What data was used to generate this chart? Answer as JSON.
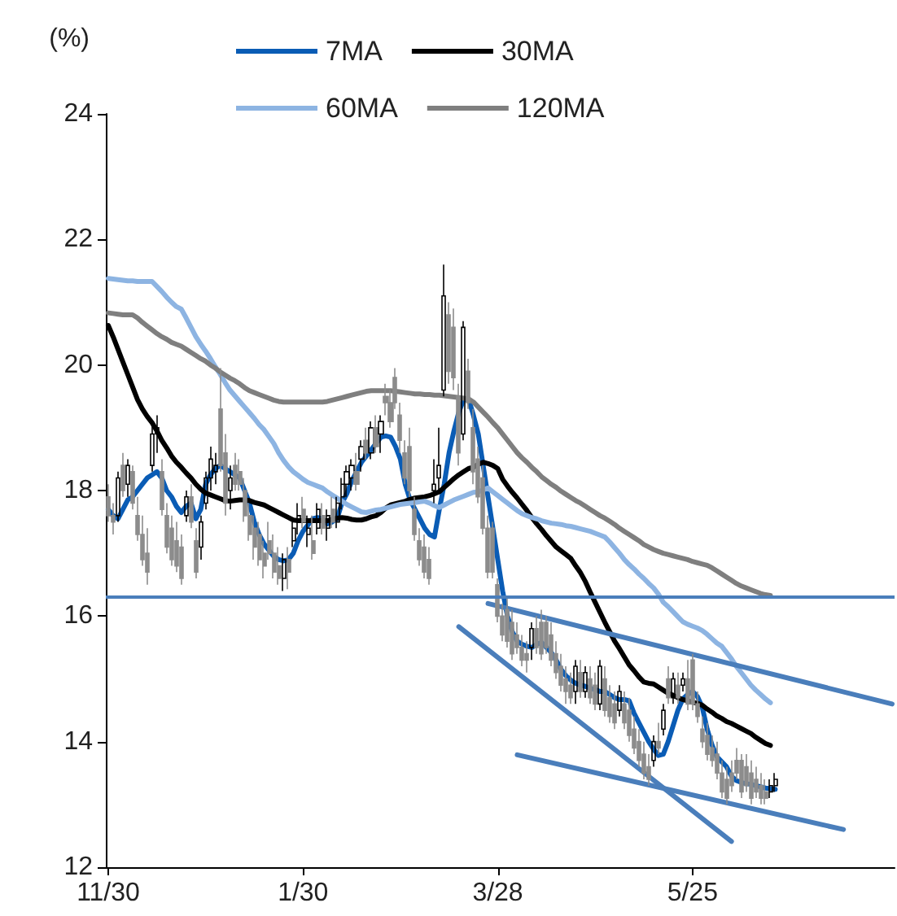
{
  "chart_data": {
    "type": "candlestick",
    "ylabel": "(%)",
    "legend": "top",
    "ylim": [
      12,
      24
    ],
    "yticks": [
      12,
      14,
      16,
      18,
      20,
      22,
      24
    ],
    "categories": [
      "11/30",
      null,
      null,
      null,
      null,
      null,
      null,
      null,
      null,
      null,
      null,
      null,
      null,
      null,
      null,
      null,
      null,
      null,
      null,
      null,
      null,
      null,
      null,
      null,
      null,
      null,
      null,
      null,
      null,
      null,
      null,
      null,
      null,
      null,
      null,
      null,
      null,
      null,
      null,
      null,
      "1/30",
      null,
      null,
      null,
      null,
      null,
      null,
      null,
      null,
      null,
      null,
      null,
      null,
      null,
      null,
      null,
      null,
      null,
      null,
      null,
      null,
      null,
      null,
      null,
      null,
      null,
      null,
      null,
      null,
      null,
      null,
      null,
      null,
      null,
      null,
      null,
      null,
      null,
      null,
      null,
      "3/28",
      null,
      null,
      null,
      null,
      null,
      null,
      null,
      null,
      null,
      null,
      null,
      null,
      null,
      null,
      null,
      null,
      null,
      null,
      null,
      null,
      null,
      null,
      null,
      null,
      null,
      null,
      null,
      null,
      null,
      null,
      null,
      null,
      null,
      null,
      null,
      null,
      null,
      null,
      null,
      "5/25",
      null,
      null,
      null,
      null,
      null,
      null,
      null,
      null,
      null,
      null,
      null,
      null,
      null,
      null,
      null,
      null,
      null,
      null,
      null,
      null,
      null,
      null,
      null,
      null,
      null,
      null,
      null,
      null,
      null,
      null,
      null,
      null,
      null,
      null,
      null,
      null,
      null,
      null,
      null,
      null,
      null
    ],
    "ohlc": [
      [
        17.9,
        18.1,
        17.5,
        17.6
      ],
      [
        17.6,
        17.8,
        17.3,
        17.5
      ],
      [
        17.6,
        18.3,
        17.5,
        18.2
      ],
      [
        18.4,
        18.6,
        17.9,
        18.0
      ],
      [
        18.1,
        18.5,
        17.9,
        18.4
      ],
      [
        18.3,
        18.4,
        17.7,
        17.8
      ],
      [
        17.6,
        17.9,
        17.2,
        17.3
      ],
      [
        17.3,
        17.6,
        16.8,
        16.9
      ],
      [
        17.0,
        17.4,
        16.5,
        16.7
      ],
      [
        18.4,
        19.1,
        18.3,
        18.9
      ],
      [
        18.9,
        19.2,
        18.6,
        19.0
      ],
      [
        18.3,
        18.5,
        17.6,
        17.7
      ],
      [
        17.6,
        17.8,
        17.0,
        17.1
      ],
      [
        17.4,
        17.6,
        16.8,
        16.9
      ],
      [
        17.2,
        17.5,
        16.7,
        16.8
      ],
      [
        17.1,
        17.3,
        16.5,
        16.6
      ],
      [
        17.6,
        18.0,
        17.5,
        17.9
      ],
      [
        17.9,
        18.1,
        17.4,
        17.5
      ],
      [
        17.2,
        17.4,
        16.6,
        16.7
      ],
      [
        17.1,
        17.6,
        16.9,
        17.5
      ],
      [
        17.8,
        18.3,
        17.7,
        18.2
      ],
      [
        18.2,
        18.7,
        18.0,
        18.5
      ],
      [
        18.3,
        18.6,
        18.1,
        18.4
      ],
      [
        19.3,
        19.95,
        18.3,
        18.4
      ],
      [
        18.6,
        18.9,
        17.6,
        17.8
      ],
      [
        18.0,
        18.4,
        17.7,
        18.2
      ],
      [
        18.4,
        18.6,
        18.0,
        18.1
      ],
      [
        18.3,
        18.5,
        18.0,
        18.1
      ],
      [
        18.0,
        18.2,
        17.5,
        17.6
      ],
      [
        17.6,
        17.8,
        17.2,
        17.3
      ],
      [
        17.4,
        17.6,
        16.9,
        17.1
      ],
      [
        17.3,
        17.5,
        16.8,
        16.9
      ],
      [
        17.0,
        17.2,
        16.6,
        16.8
      ],
      [
        17.2,
        17.5,
        16.9,
        17.0
      ],
      [
        17.0,
        17.3,
        16.6,
        16.7
      ],
      [
        16.8,
        17.1,
        16.5,
        16.6
      ],
      [
        16.6,
        17.0,
        16.4,
        16.9
      ],
      [
        16.9,
        17.1,
        16.43,
        16.7
      ],
      [
        17.2,
        17.5,
        17.1,
        17.4
      ],
      [
        17.5,
        17.8,
        17.3,
        17.6
      ],
      [
        17.7,
        17.9,
        17.4,
        17.5
      ],
      [
        17.3,
        17.6,
        17.1,
        17.4
      ],
      [
        17.2,
        17.6,
        16.9,
        17.0
      ],
      [
        17.4,
        17.8,
        17.3,
        17.7
      ],
      [
        17.6,
        17.8,
        17.3,
        17.4
      ],
      [
        17.4,
        17.7,
        17.2,
        17.6
      ],
      [
        17.7,
        17.9,
        17.4,
        17.5
      ],
      [
        17.5,
        17.9,
        17.4,
        17.8
      ],
      [
        17.9,
        18.2,
        17.7,
        18.1
      ],
      [
        18.1,
        18.4,
        17.9,
        18.3
      ],
      [
        18.2,
        18.5,
        18.0,
        18.4
      ],
      [
        18.3,
        18.6,
        18.0,
        18.1
      ],
      [
        18.5,
        18.8,
        18.3,
        18.7
      ],
      [
        18.8,
        19.0,
        18.5,
        18.6
      ],
      [
        18.6,
        19.1,
        18.5,
        19.0
      ],
      [
        19.0,
        19.2,
        18.6,
        18.7
      ],
      [
        18.9,
        19.2,
        18.6,
        19.1
      ],
      [
        19.5,
        19.7,
        19.2,
        19.4
      ],
      [
        19.4,
        19.6,
        19.0,
        19.1
      ],
      [
        19.8,
        19.95,
        19.3,
        19.4
      ],
      [
        19.2,
        19.4,
        18.6,
        18.8
      ],
      [
        18.6,
        18.8,
        18.1,
        18.2
      ],
      [
        18.7,
        19.0,
        17.9,
        18.0
      ],
      [
        17.7,
        17.9,
        17.2,
        17.3
      ],
      [
        17.2,
        17.4,
        16.8,
        16.9
      ],
      [
        17.1,
        17.3,
        16.6,
        16.7
      ],
      [
        16.9,
        17.1,
        16.5,
        16.6
      ],
      [
        18.0,
        18.5,
        17.8,
        18.1
      ],
      [
        18.2,
        19.0,
        18.0,
        18.4
      ],
      [
        19.6,
        21.6,
        19.5,
        21.1
      ],
      [
        20.8,
        21.0,
        19.7,
        19.9
      ],
      [
        20.6,
        20.9,
        19.6,
        19.8
      ],
      [
        19.5,
        19.7,
        18.4,
        18.6
      ],
      [
        18.9,
        20.7,
        18.8,
        20.6
      ],
      [
        19.9,
        20.1,
        19.3,
        19.4
      ],
      [
        19.0,
        19.3,
        18.1,
        18.3
      ],
      [
        18.5,
        18.7,
        17.8,
        17.9
      ],
      [
        18.2,
        18.4,
        17.3,
        17.4
      ],
      [
        17.4,
        17.6,
        16.6,
        16.7
      ],
      [
        17.4,
        17.5,
        16.6,
        16.7
      ],
      [
        16.5,
        16.6,
        15.9,
        16.0
      ],
      [
        16.0,
        16.2,
        15.6,
        15.7
      ],
      [
        16.1,
        16.3,
        15.5,
        15.6
      ],
      [
        15.9,
        16.1,
        15.3,
        15.4
      ],
      [
        15.7,
        15.9,
        15.4,
        15.5
      ],
      [
        15.5,
        15.7,
        15.2,
        15.3
      ],
      [
        15.4,
        15.6,
        15.1,
        15.3
      ],
      [
        15.5,
        15.9,
        15.3,
        15.8
      ],
      [
        15.8,
        16.0,
        15.4,
        15.5
      ],
      [
        15.9,
        16.1,
        15.3,
        15.4
      ],
      [
        15.9,
        16.0,
        15.4,
        15.5
      ],
      [
        15.7,
        15.9,
        15.2,
        15.3
      ],
      [
        15.4,
        15.6,
        15.0,
        15.1
      ],
      [
        15.2,
        15.4,
        14.8,
        14.9
      ],
      [
        15.0,
        15.2,
        14.6,
        14.8
      ],
      [
        14.9,
        15.1,
        14.6,
        14.7
      ],
      [
        14.8,
        15.3,
        14.6,
        15.2
      ],
      [
        15.1,
        15.3,
        14.7,
        14.8
      ],
      [
        14.8,
        15.2,
        14.7,
        15.1
      ],
      [
        15.0,
        15.2,
        14.6,
        14.7
      ],
      [
        14.9,
        15.1,
        14.5,
        14.6
      ],
      [
        14.6,
        15.3,
        14.5,
        15.2
      ],
      [
        15.0,
        15.2,
        14.4,
        14.5
      ],
      [
        14.7,
        14.9,
        14.3,
        14.4
      ],
      [
        14.6,
        14.8,
        14.2,
        14.3
      ],
      [
        14.5,
        14.9,
        14.4,
        14.8
      ],
      [
        14.6,
        14.8,
        14.2,
        14.3
      ],
      [
        14.5,
        14.7,
        14.0,
        14.1
      ],
      [
        14.2,
        14.4,
        13.8,
        13.9
      ],
      [
        14.0,
        14.2,
        13.6,
        13.7
      ],
      [
        13.8,
        14.0,
        13.4,
        13.5
      ],
      [
        13.6,
        13.8,
        13.3,
        13.4
      ],
      [
        13.7,
        14.1,
        13.6,
        14.0
      ],
      [
        14.0,
        14.3,
        13.8,
        13.9
      ],
      [
        14.2,
        14.6,
        14.1,
        14.5
      ],
      [
        15.0,
        15.2,
        14.6,
        14.7
      ],
      [
        14.7,
        15.1,
        14.6,
        15.0
      ],
      [
        14.9,
        15.1,
        14.6,
        14.7
      ],
      [
        14.9,
        15.1,
        14.8,
        15.0
      ],
      [
        15.0,
        15.3,
        14.5,
        14.6
      ],
      [
        15.3,
        15.4,
        14.5,
        14.6
      ],
      [
        14.6,
        14.8,
        14.3,
        14.4
      ],
      [
        14.2,
        14.4,
        13.9,
        14.0
      ],
      [
        14.1,
        14.3,
        13.7,
        13.8
      ],
      [
        13.9,
        14.1,
        13.6,
        13.7
      ],
      [
        13.8,
        14.0,
        13.4,
        13.5
      ],
      [
        13.5,
        13.7,
        13.1,
        13.2
      ],
      [
        13.4,
        13.6,
        13.0,
        13.1
      ],
      [
        13.5,
        13.7,
        13.2,
        13.3
      ],
      [
        13.7,
        13.9,
        13.4,
        13.5
      ],
      [
        13.7,
        13.8,
        13.1,
        13.2
      ],
      [
        13.6,
        13.8,
        13.2,
        13.3
      ],
      [
        13.5,
        13.7,
        13.0,
        13.1
      ],
      [
        13.4,
        13.6,
        13.1,
        13.2
      ],
      [
        13.3,
        13.5,
        13.0,
        13.1
      ],
      [
        13.2,
        13.4,
        13.0,
        13.1
      ],
      [
        13.2,
        13.4,
        13.1,
        13.3
      ],
      [
        13.3,
        13.5,
        13.2,
        13.4
      ],
      null,
      null,
      null,
      null,
      null,
      null,
      null,
      null,
      null,
      null,
      null,
      null,
      null,
      null,
      null,
      null,
      null,
      null,
      null,
      null,
      null,
      null,
      null,
      null
    ],
    "ref_lines": [
      {
        "axis": "y",
        "value": 16.3,
        "color": "#4a7ebb"
      }
    ],
    "series": [
      {
        "name": "7MA",
        "type": "line",
        "color": "#0a5cb5",
        "values": [
          17.7,
          17.6,
          17.55,
          17.7,
          17.85,
          17.9,
          18.0,
          18.1,
          18.2,
          18.25,
          18.3,
          18.2,
          18.0,
          17.9,
          17.75,
          17.65,
          17.75,
          17.8,
          17.55,
          17.7,
          18.1,
          18.25,
          18.35,
          18.4,
          18.35,
          18.3,
          18.25,
          18.2,
          18.0,
          17.8,
          17.5,
          17.3,
          17.15,
          17.05,
          16.95,
          16.9,
          16.88,
          16.9,
          17.0,
          17.2,
          17.35,
          17.45,
          17.55,
          17.57,
          17.55,
          17.47,
          17.5,
          17.55,
          17.8,
          17.95,
          18.15,
          18.3,
          18.45,
          18.55,
          18.65,
          18.75,
          18.85,
          18.87,
          18.85,
          18.7,
          18.5,
          18.1,
          17.85,
          17.7,
          17.55,
          17.4,
          17.3,
          17.26,
          17.7,
          18.1,
          18.6,
          18.95,
          19.25,
          19.45,
          19.46,
          19.2,
          18.9,
          18.4,
          17.9,
          17.4,
          16.9,
          16.4,
          16.0,
          15.75,
          15.6,
          15.55,
          15.52,
          15.5,
          15.55,
          15.58,
          15.5,
          15.42,
          15.3,
          15.15,
          15.05,
          14.98,
          14.93,
          14.9,
          14.88,
          14.85,
          14.83,
          14.8,
          14.8,
          14.75,
          14.7,
          14.67,
          14.67,
          14.65,
          14.45,
          14.3,
          14.15,
          14.0,
          13.88,
          13.78,
          13.8,
          14.0,
          14.25,
          14.5,
          14.68,
          14.75,
          14.8,
          14.72,
          14.55,
          14.2,
          13.95,
          13.76,
          13.68,
          13.6,
          13.45,
          13.38,
          13.35,
          13.33,
          13.32,
          13.3,
          13.28,
          13.26,
          13.25,
          13.24,
          null,
          null,
          null,
          null,
          null,
          null,
          null,
          null,
          null,
          null,
          null,
          null,
          null,
          null,
          null,
          null,
          null,
          null,
          null,
          null,
          null,
          null,
          null,
          null
        ]
      },
      {
        "name": "30MA",
        "type": "line",
        "color": "#000000",
        "values": [
          20.63,
          20.45,
          20.25,
          20.05,
          19.85,
          19.65,
          19.45,
          19.3,
          19.18,
          19.08,
          18.95,
          18.8,
          18.68,
          18.55,
          18.45,
          18.37,
          18.28,
          18.2,
          18.1,
          18.02,
          17.96,
          17.93,
          17.9,
          17.87,
          17.84,
          17.83,
          17.84,
          17.85,
          17.85,
          17.84,
          17.81,
          17.79,
          17.77,
          17.73,
          17.69,
          17.65,
          17.61,
          17.57,
          17.53,
          17.52,
          17.52,
          17.52,
          17.52,
          17.52,
          17.52,
          17.52,
          17.54,
          17.56,
          17.57,
          17.56,
          17.54,
          17.53,
          17.53,
          17.55,
          17.58,
          17.6,
          17.65,
          17.72,
          17.77,
          17.79,
          17.81,
          17.83,
          17.86,
          17.88,
          17.89,
          17.9,
          17.92,
          17.95,
          17.98,
          18.05,
          18.12,
          18.19,
          18.25,
          18.3,
          18.35,
          18.37,
          18.42,
          18.45,
          18.43,
          18.4,
          18.35,
          18.18,
          18.07,
          17.97,
          17.88,
          17.78,
          17.68,
          17.57,
          17.47,
          17.38,
          17.28,
          17.19,
          17.1,
          17.04,
          16.98,
          16.92,
          16.8,
          16.69,
          16.55,
          16.38,
          16.22,
          16.06,
          15.9,
          15.75,
          15.6,
          15.48,
          15.35,
          15.22,
          15.13,
          15.03,
          14.95,
          14.93,
          14.92,
          14.87,
          14.82,
          14.77,
          14.74,
          14.7,
          14.67,
          14.65,
          14.63,
          14.61,
          14.58,
          14.52,
          14.47,
          14.41,
          14.37,
          14.32,
          14.29,
          14.25,
          14.21,
          14.17,
          14.13,
          14.07,
          14.02,
          13.97,
          13.94,
          null,
          null,
          null,
          null,
          null,
          null,
          null,
          null,
          null,
          null,
          null,
          null,
          null,
          null,
          null,
          null,
          null,
          null,
          null,
          null,
          null,
          null,
          null,
          null,
          null
        ]
      },
      {
        "name": "60MA",
        "type": "line",
        "color": "#8db4e2",
        "values": [
          21.38,
          21.37,
          21.36,
          21.35,
          21.34,
          21.34,
          21.33,
          21.33,
          21.33,
          21.33,
          21.25,
          21.17,
          21.08,
          21.0,
          20.93,
          20.89,
          20.75,
          20.6,
          20.45,
          20.33,
          20.22,
          20.1,
          19.97,
          19.85,
          19.72,
          19.6,
          19.51,
          19.42,
          19.33,
          19.24,
          19.15,
          19.05,
          18.97,
          18.86,
          18.75,
          18.6,
          18.48,
          18.38,
          18.3,
          18.24,
          18.18,
          18.13,
          18.1,
          18.07,
          18.04,
          17.98,
          17.93,
          17.88,
          17.83,
          17.78,
          17.74,
          17.7,
          17.66,
          17.65,
          17.67,
          17.69,
          17.7,
          17.72,
          17.74,
          17.76,
          17.78,
          17.79,
          17.8,
          17.81,
          17.82,
          17.83,
          17.8,
          17.76,
          17.73,
          17.77,
          17.81,
          17.85,
          17.88,
          17.91,
          17.94,
          17.97,
          17.98,
          18.01,
          18.04,
          17.98,
          17.92,
          17.86,
          17.8,
          17.74,
          17.68,
          17.63,
          17.6,
          17.57,
          17.55,
          17.52,
          17.5,
          17.48,
          17.47,
          17.46,
          17.44,
          17.43,
          17.41,
          17.39,
          17.37,
          17.35,
          17.32,
          17.29,
          17.26,
          17.18,
          17.09,
          17.0,
          16.9,
          16.82,
          16.75,
          16.67,
          16.6,
          16.52,
          16.45,
          16.35,
          16.22,
          16.15,
          16.07,
          15.99,
          15.91,
          15.87,
          15.84,
          15.81,
          15.77,
          15.71,
          15.64,
          15.57,
          15.52,
          15.42,
          15.32,
          15.2,
          15.1,
          15.0,
          14.9,
          14.82,
          14.75,
          14.68,
          14.62,
          null,
          null,
          null,
          null,
          null,
          null,
          null,
          null,
          null,
          null,
          null,
          null,
          null,
          null,
          null,
          null,
          null,
          null,
          null,
          null,
          null,
          null,
          null,
          null,
          null
        ]
      },
      {
        "name": "120MA",
        "type": "line",
        "color": "#7f7f7f",
        "values": [
          20.83,
          20.82,
          20.81,
          20.8,
          20.8,
          20.8,
          20.75,
          20.68,
          20.62,
          20.56,
          20.5,
          20.45,
          20.41,
          20.36,
          20.33,
          20.3,
          20.25,
          20.2,
          20.15,
          20.1,
          20.06,
          20.0,
          19.95,
          19.89,
          19.84,
          19.79,
          19.75,
          19.7,
          19.64,
          19.59,
          19.56,
          19.53,
          19.5,
          19.47,
          19.44,
          19.42,
          19.41,
          19.41,
          19.41,
          19.41,
          19.41,
          19.41,
          19.41,
          19.41,
          19.41,
          19.42,
          19.44,
          19.46,
          19.48,
          19.5,
          19.52,
          19.54,
          19.56,
          19.58,
          19.59,
          19.59,
          19.59,
          19.59,
          19.59,
          19.58,
          19.57,
          19.56,
          19.55,
          19.54,
          19.54,
          19.53,
          19.53,
          19.52,
          19.52,
          19.51,
          19.5,
          19.49,
          19.48,
          19.47,
          19.46,
          19.41,
          19.33,
          19.25,
          19.17,
          19.08,
          19.0,
          18.9,
          18.8,
          18.7,
          18.6,
          18.52,
          18.45,
          18.37,
          18.3,
          18.22,
          18.16,
          18.1,
          18.05,
          17.99,
          17.94,
          17.89,
          17.84,
          17.8,
          17.75,
          17.7,
          17.65,
          17.6,
          17.56,
          17.51,
          17.46,
          17.4,
          17.35,
          17.3,
          17.25,
          17.2,
          17.14,
          17.1,
          17.06,
          17.03,
          17.0,
          16.98,
          16.96,
          16.94,
          16.92,
          16.9,
          16.87,
          16.85,
          16.83,
          16.81,
          16.77,
          16.72,
          16.67,
          16.62,
          16.57,
          16.52,
          16.48,
          16.45,
          16.42,
          16.39,
          16.36,
          16.34,
          16.33,
          null,
          null,
          null,
          null,
          null,
          null,
          null,
          null,
          null,
          null,
          null,
          null,
          null,
          null,
          null,
          null,
          null,
          null,
          null,
          null,
          null,
          null,
          null,
          null,
          null
        ]
      },
      {
        "type": "line",
        "color": "#4a7ebb",
        "values": [
          null,
          null,
          null,
          null,
          null,
          null,
          null,
          null,
          null,
          null,
          null,
          null,
          null,
          null,
          null,
          null,
          null,
          null,
          null,
          null,
          null,
          null,
          null,
          null,
          null,
          null,
          null,
          null,
          null,
          null,
          null,
          null,
          null,
          null,
          null,
          null,
          null,
          null,
          null,
          null,
          null,
          null,
          null,
          null,
          null,
          null,
          null,
          null,
          null,
          null,
          null,
          null,
          null,
          null,
          null,
          null,
          null,
          null,
          null,
          null,
          null,
          null,
          null,
          null,
          null,
          null,
          null,
          null,
          null,
          null,
          null,
          null,
          null,
          null,
          null,
          null,
          null,
          null,
          16.2,
          null,
          null,
          null,
          null,
          null,
          null,
          null,
          null,
          null,
          null,
          null,
          null,
          null,
          null,
          null,
          null,
          null,
          null,
          null,
          null,
          null,
          null,
          null,
          null,
          null,
          null,
          null,
          null,
          null,
          null,
          null,
          null,
          null,
          null,
          null,
          null,
          null,
          null,
          null,
          null,
          null,
          null,
          null,
          null,
          null,
          null,
          null,
          null,
          null,
          null,
          null,
          null,
          null,
          null,
          null,
          null,
          null,
          null,
          null,
          null,
          null,
          null,
          null,
          null,
          null,
          null,
          null,
          null,
          null,
          null,
          null,
          null,
          null,
          null,
          null,
          null,
          null,
          null,
          null,
          null,
          null,
          null,
          14.6
        ]
      },
      {
        "type": "line",
        "color": "#4a7ebb",
        "values": [
          null,
          null,
          null,
          null,
          null,
          null,
          null,
          null,
          null,
          null,
          null,
          null,
          null,
          null,
          null,
          null,
          null,
          null,
          null,
          null,
          null,
          null,
          null,
          null,
          null,
          null,
          null,
          null,
          null,
          null,
          null,
          null,
          null,
          null,
          null,
          null,
          null,
          null,
          null,
          null,
          null,
          null,
          null,
          null,
          null,
          null,
          null,
          null,
          null,
          null,
          null,
          null,
          null,
          null,
          null,
          null,
          null,
          null,
          null,
          null,
          null,
          null,
          null,
          null,
          null,
          null,
          null,
          null,
          null,
          null,
          null,
          null,
          15.83,
          null,
          null,
          null,
          null,
          null,
          null,
          null,
          null,
          null,
          null,
          null,
          null,
          null,
          null,
          null,
          null,
          null,
          null,
          null,
          null,
          null,
          null,
          null,
          null,
          null,
          null,
          null,
          null,
          null,
          null,
          null,
          null,
          null,
          null,
          null,
          null,
          null,
          null,
          null,
          null,
          null,
          null,
          null,
          null,
          null,
          null,
          null,
          null,
          null,
          null,
          null,
          null,
          null,
          null,
          null,
          12.41,
          null,
          null,
          null,
          null,
          null,
          null,
          null,
          null,
          null,
          null,
          null,
          null,
          null,
          null,
          null,
          null,
          null,
          null,
          null,
          null,
          null,
          null,
          null,
          null,
          null,
          null,
          null,
          null,
          null,
          null,
          null,
          null,
          null
        ]
      },
      {
        "type": "line",
        "color": "#4a7ebb",
        "values": [
          null,
          null,
          null,
          null,
          null,
          null,
          null,
          null,
          null,
          null,
          null,
          null,
          null,
          null,
          null,
          null,
          null,
          null,
          null,
          null,
          null,
          null,
          null,
          null,
          null,
          null,
          null,
          null,
          null,
          null,
          null,
          null,
          null,
          null,
          null,
          null,
          null,
          null,
          null,
          null,
          null,
          null,
          null,
          null,
          null,
          null,
          null,
          null,
          null,
          null,
          null,
          null,
          null,
          null,
          null,
          null,
          null,
          null,
          null,
          null,
          null,
          null,
          null,
          null,
          null,
          null,
          null,
          null,
          null,
          null,
          null,
          null,
          null,
          null,
          null,
          null,
          null,
          null,
          null,
          null,
          null,
          null,
          null,
          null,
          13.79,
          null,
          null,
          null,
          null,
          null,
          null,
          null,
          null,
          null,
          null,
          null,
          null,
          null,
          null,
          null,
          null,
          null,
          null,
          null,
          null,
          null,
          null,
          null,
          null,
          null,
          null,
          null,
          null,
          null,
          null,
          null,
          null,
          null,
          null,
          null,
          null,
          null,
          null,
          null,
          null,
          null,
          null,
          null,
          null,
          null,
          null,
          null,
          null,
          null,
          null,
          null,
          null,
          null,
          null,
          null,
          null,
          null,
          null,
          null,
          null,
          null,
          null,
          null,
          null,
          null,
          null,
          12.6,
          null,
          null,
          null,
          null,
          null,
          null,
          null,
          null,
          null,
          null
        ]
      }
    ]
  }
}
